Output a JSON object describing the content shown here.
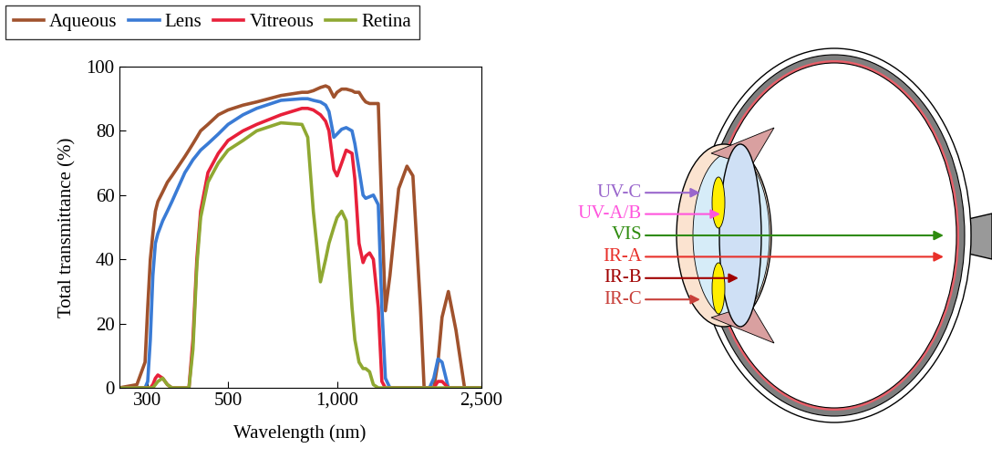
{
  "chart_data": {
    "type": "line",
    "x_label": "Wavelength (nm)",
    "y_label": "Total transmittance (%)",
    "x": [
      250,
      280,
      295,
      300,
      305,
      310,
      315,
      320,
      330,
      340,
      350,
      380,
      390,
      400,
      410,
      420,
      440,
      470,
      500,
      550,
      600,
      700,
      800,
      830,
      860,
      900,
      930,
      950,
      980,
      1000,
      1030,
      1060,
      1100,
      1120,
      1150,
      1180,
      1200,
      1230,
      1260,
      1300,
      1330,
      1360,
      1400,
      1480,
      1560,
      1620,
      1700,
      1740,
      1800,
      1850,
      1900,
      1950,
      2030,
      2130,
      2250,
      2500
    ],
    "series": [
      {
        "name": "Aqueous",
        "color": "#a0522d",
        "values": [
          0,
          1,
          8,
          25,
          40,
          48,
          55,
          58,
          61,
          64,
          66,
          72,
          74,
          76,
          78,
          80,
          82,
          85,
          86.5,
          88,
          89,
          91,
          92,
          92,
          92.5,
          93.5,
          94,
          93.5,
          90.5,
          92,
          93,
          93,
          92.5,
          92,
          92,
          90,
          89,
          88.5,
          88.5,
          88.5,
          55,
          24,
          35,
          62,
          69,
          66,
          25,
          0,
          0,
          0,
          8,
          22,
          30,
          18,
          0,
          0
        ]
      },
      {
        "name": "Lens",
        "color": "#3a7bd5",
        "values": [
          0,
          0,
          0,
          2,
          15,
          35,
          45,
          48,
          52,
          55,
          58,
          67,
          69,
          71,
          72.5,
          74,
          76,
          79,
          82,
          85,
          87,
          89.5,
          90,
          90,
          89.5,
          89,
          88,
          86,
          78,
          79,
          80.5,
          81,
          80,
          76,
          68,
          60,
          59,
          59.5,
          60,
          57,
          25,
          3,
          0,
          0,
          0,
          0,
          0,
          0,
          0,
          3,
          9,
          8,
          0,
          0,
          0,
          0
        ]
      },
      {
        "name": "Vitreous",
        "color": "#e8203a",
        "values": [
          0,
          0,
          0,
          0,
          0,
          1,
          3,
          4,
          3,
          1,
          0,
          0,
          0,
          15,
          40,
          55,
          67,
          73,
          77,
          80,
          82,
          85,
          87,
          87,
          86.5,
          85,
          83,
          80,
          68,
          66,
          70,
          74,
          73,
          65,
          45,
          39,
          41,
          42,
          40,
          25,
          2,
          0,
          0,
          0,
          0,
          0,
          0,
          0,
          0,
          0,
          2,
          2,
          0,
          0,
          0,
          0
        ]
      },
      {
        "name": "Retina",
        "color": "#8fa832",
        "values": [
          0,
          0,
          0,
          0,
          0,
          0,
          1,
          2,
          3,
          1,
          0,
          0,
          0,
          12,
          38,
          53,
          64,
          70,
          74,
          77,
          80,
          82.5,
          82,
          78,
          55,
          33,
          40,
          45,
          50,
          53,
          55,
          52,
          25,
          15,
          8,
          6,
          6,
          5,
          1,
          0,
          0,
          0,
          0,
          0,
          0,
          0,
          0,
          0,
          0,
          0,
          0,
          0,
          0,
          0,
          0,
          0
        ]
      }
    ],
    "log": "x",
    "xlim": [
      250,
      2500
    ],
    "xticks": [
      300,
      500,
      {
        "value": 1000,
        "label": "1,000"
      },
      {
        "value": 2500,
        "label": "2,500"
      }
    ],
    "ylim": [
      0,
      100
    ],
    "yticks": [
      0,
      20,
      40,
      60,
      80,
      100
    ],
    "grid": false,
    "legend": "upper left"
  },
  "diagram": {
    "labels": [
      {
        "text": "UV-C",
        "color": "#9966cc"
      },
      {
        "text": "UV-A/B",
        "color": "#ff55dd"
      },
      {
        "text": "VIS",
        "color": "#2e8b0e"
      },
      {
        "text": "IR-A",
        "color": "#e8302a"
      },
      {
        "text": "IR-B",
        "color": "#a00000"
      },
      {
        "text": "IR-C",
        "color": "#c8403a"
      }
    ]
  }
}
